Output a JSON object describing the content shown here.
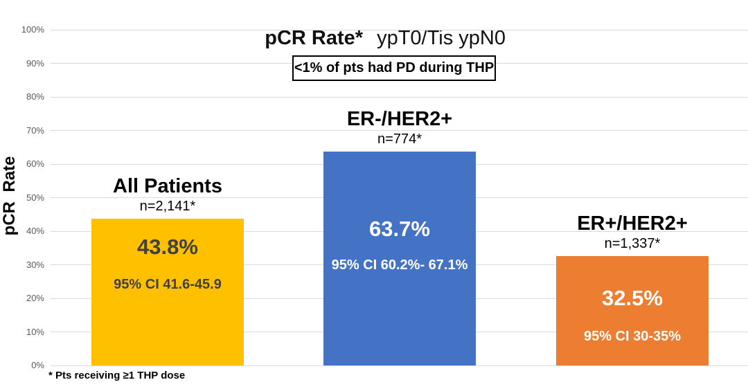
{
  "chart_data": {
    "type": "bar",
    "title": "pCR Rate* ypT0/Tis ypN0",
    "title_bold": "pCR Rate*",
    "title_regular": "ypT0/Tis ypN0",
    "ylabel": "pCR  Rate",
    "ylim": [
      0,
      100
    ],
    "ytick_step": 10,
    "yticks": [
      "100%",
      "90%",
      "80%",
      "70%",
      "60%",
      "50%",
      "40%",
      "30%",
      "20%",
      "10%",
      "0%"
    ],
    "grid": true,
    "legend": "none",
    "annotation": "<1% of pts had PD during THP",
    "footnote": "* Pts receiving ≥1 THP dose",
    "categories": [
      "All Patients",
      "ER-/HER2+",
      "ER+/HER2+"
    ],
    "values": [
      43.8,
      63.7,
      32.5
    ],
    "bars": [
      {
        "label": "All Patients",
        "n": "n=2,141*",
        "value": 43.8,
        "value_label": "43.8%",
        "ci": "95% CI 41.6-45.9",
        "color": "#FFC000",
        "text_color": "#404040"
      },
      {
        "label": "ER-/HER2+",
        "n": "n=774*",
        "value": 63.7,
        "value_label": "63.7%",
        "ci": "95% CI 60.2%- 67.1%",
        "color": "#4472C4",
        "text_color": "#FFFFFF"
      },
      {
        "label": "ER+/HER2+",
        "n": "n=1,337*",
        "value": 32.5,
        "value_label": "32.5%",
        "ci": "95% CI 30-35%",
        "color": "#ED7D31",
        "text_color": "#FFFFFF"
      }
    ],
    "colors": {
      "gridline": "#D9D9D9",
      "tick_label": "#595959",
      "background": "#FFFFFF"
    }
  }
}
